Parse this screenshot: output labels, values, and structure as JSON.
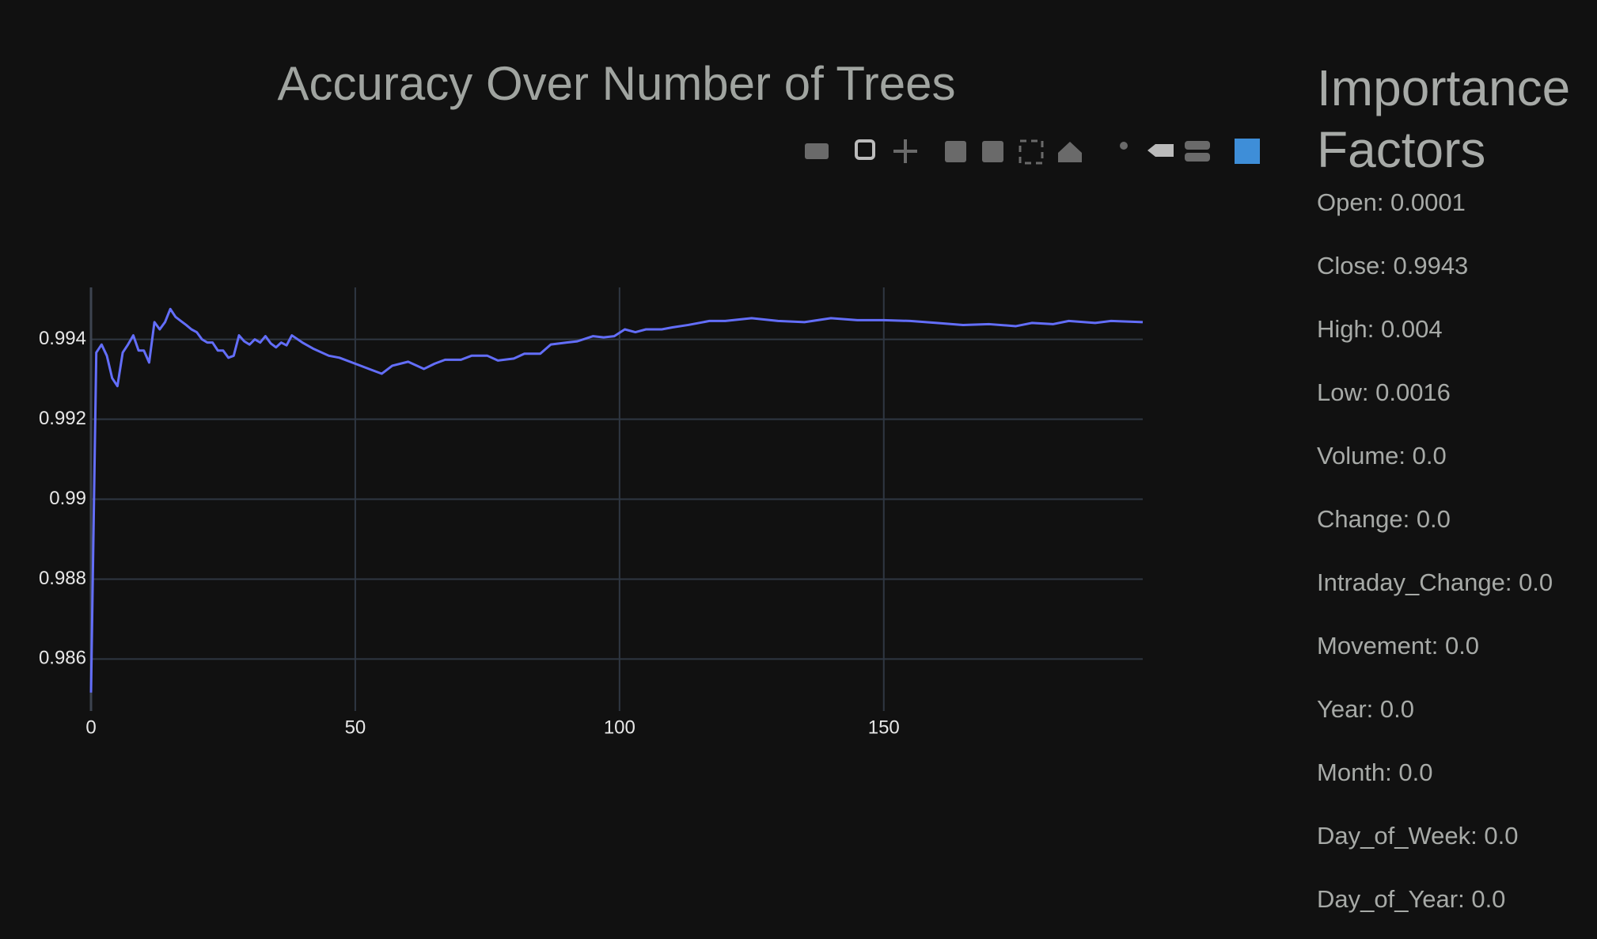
{
  "chart_data": {
    "type": "line",
    "title": "Accuracy Over Number of Trees",
    "x": [
      0,
      1,
      2,
      3,
      4,
      5,
      6,
      7,
      8,
      9,
      10,
      11,
      12,
      13,
      14,
      15,
      16,
      17,
      18,
      19,
      20,
      21,
      22,
      23,
      24,
      25,
      26,
      27,
      28,
      29,
      30,
      31,
      32,
      33,
      34,
      35,
      36,
      37,
      38,
      40,
      42,
      45,
      47,
      50,
      53,
      55,
      57,
      60,
      63,
      65,
      67,
      70,
      72,
      75,
      77,
      80,
      82,
      85,
      87,
      90,
      92,
      95,
      97,
      99,
      101,
      103,
      105,
      108,
      110,
      113,
      115,
      117,
      120,
      125,
      130,
      135,
      140,
      145,
      150,
      155,
      160,
      165,
      170,
      175,
      178,
      182,
      185,
      190,
      193,
      199
    ],
    "series": [
      {
        "color": "#636efa",
        "values": [
          0.98516,
          0.99367,
          0.99387,
          0.99359,
          0.99303,
          0.99283,
          0.99367,
          0.99387,
          0.9941,
          0.99372,
          0.99372,
          0.99342,
          0.99443,
          0.99425,
          0.99443,
          0.99476,
          0.99456,
          0.99446,
          0.99436,
          0.99425,
          0.99418,
          0.994,
          0.99392,
          0.99392,
          0.99372,
          0.99372,
          0.99354,
          0.99359,
          0.9941,
          0.99395,
          0.99387,
          0.994,
          0.99392,
          0.99408,
          0.9939,
          0.9938,
          0.99392,
          0.99385,
          0.9941,
          0.99392,
          0.99377,
          0.99359,
          0.99354,
          0.99339,
          0.99324,
          0.99314,
          0.99334,
          0.99344,
          0.99326,
          0.99339,
          0.99349,
          0.99349,
          0.99359,
          0.99359,
          0.99347,
          0.99352,
          0.99364,
          0.99364,
          0.99387,
          0.99392,
          0.99395,
          0.99408,
          0.99405,
          0.99408,
          0.99425,
          0.99418,
          0.99425,
          0.99425,
          0.9943,
          0.99436,
          0.99441,
          0.99446,
          0.99446,
          0.99453,
          0.99446,
          0.99443,
          0.99453,
          0.99448,
          0.99448,
          0.99446,
          0.99441,
          0.99436,
          0.99438,
          0.99433,
          0.99441,
          0.99438,
          0.99446,
          0.99441,
          0.99446,
          0.99443
        ]
      }
    ],
    "xlim": [
      0,
      199
    ],
    "ylim": [
      0.9847,
      0.9953
    ],
    "xticks": [
      0,
      50,
      100,
      150
    ],
    "yticks": [
      0.986,
      0.988,
      0.99,
      0.992,
      0.994
    ],
    "grid": true
  },
  "sidebar": {
    "title": "Importance Factors",
    "items": [
      "Open: 0.0001",
      "Close: 0.9943",
      "High: 0.004",
      "Low: 0.0016",
      "Volume: 0.0",
      "Change: 0.0",
      "Intraday_Change: 0.0",
      "Movement: 0.0",
      "Year: 0.0",
      "Month: 0.0",
      "Day_of_Week: 0.0",
      "Day_of_Year: 0.0"
    ]
  }
}
